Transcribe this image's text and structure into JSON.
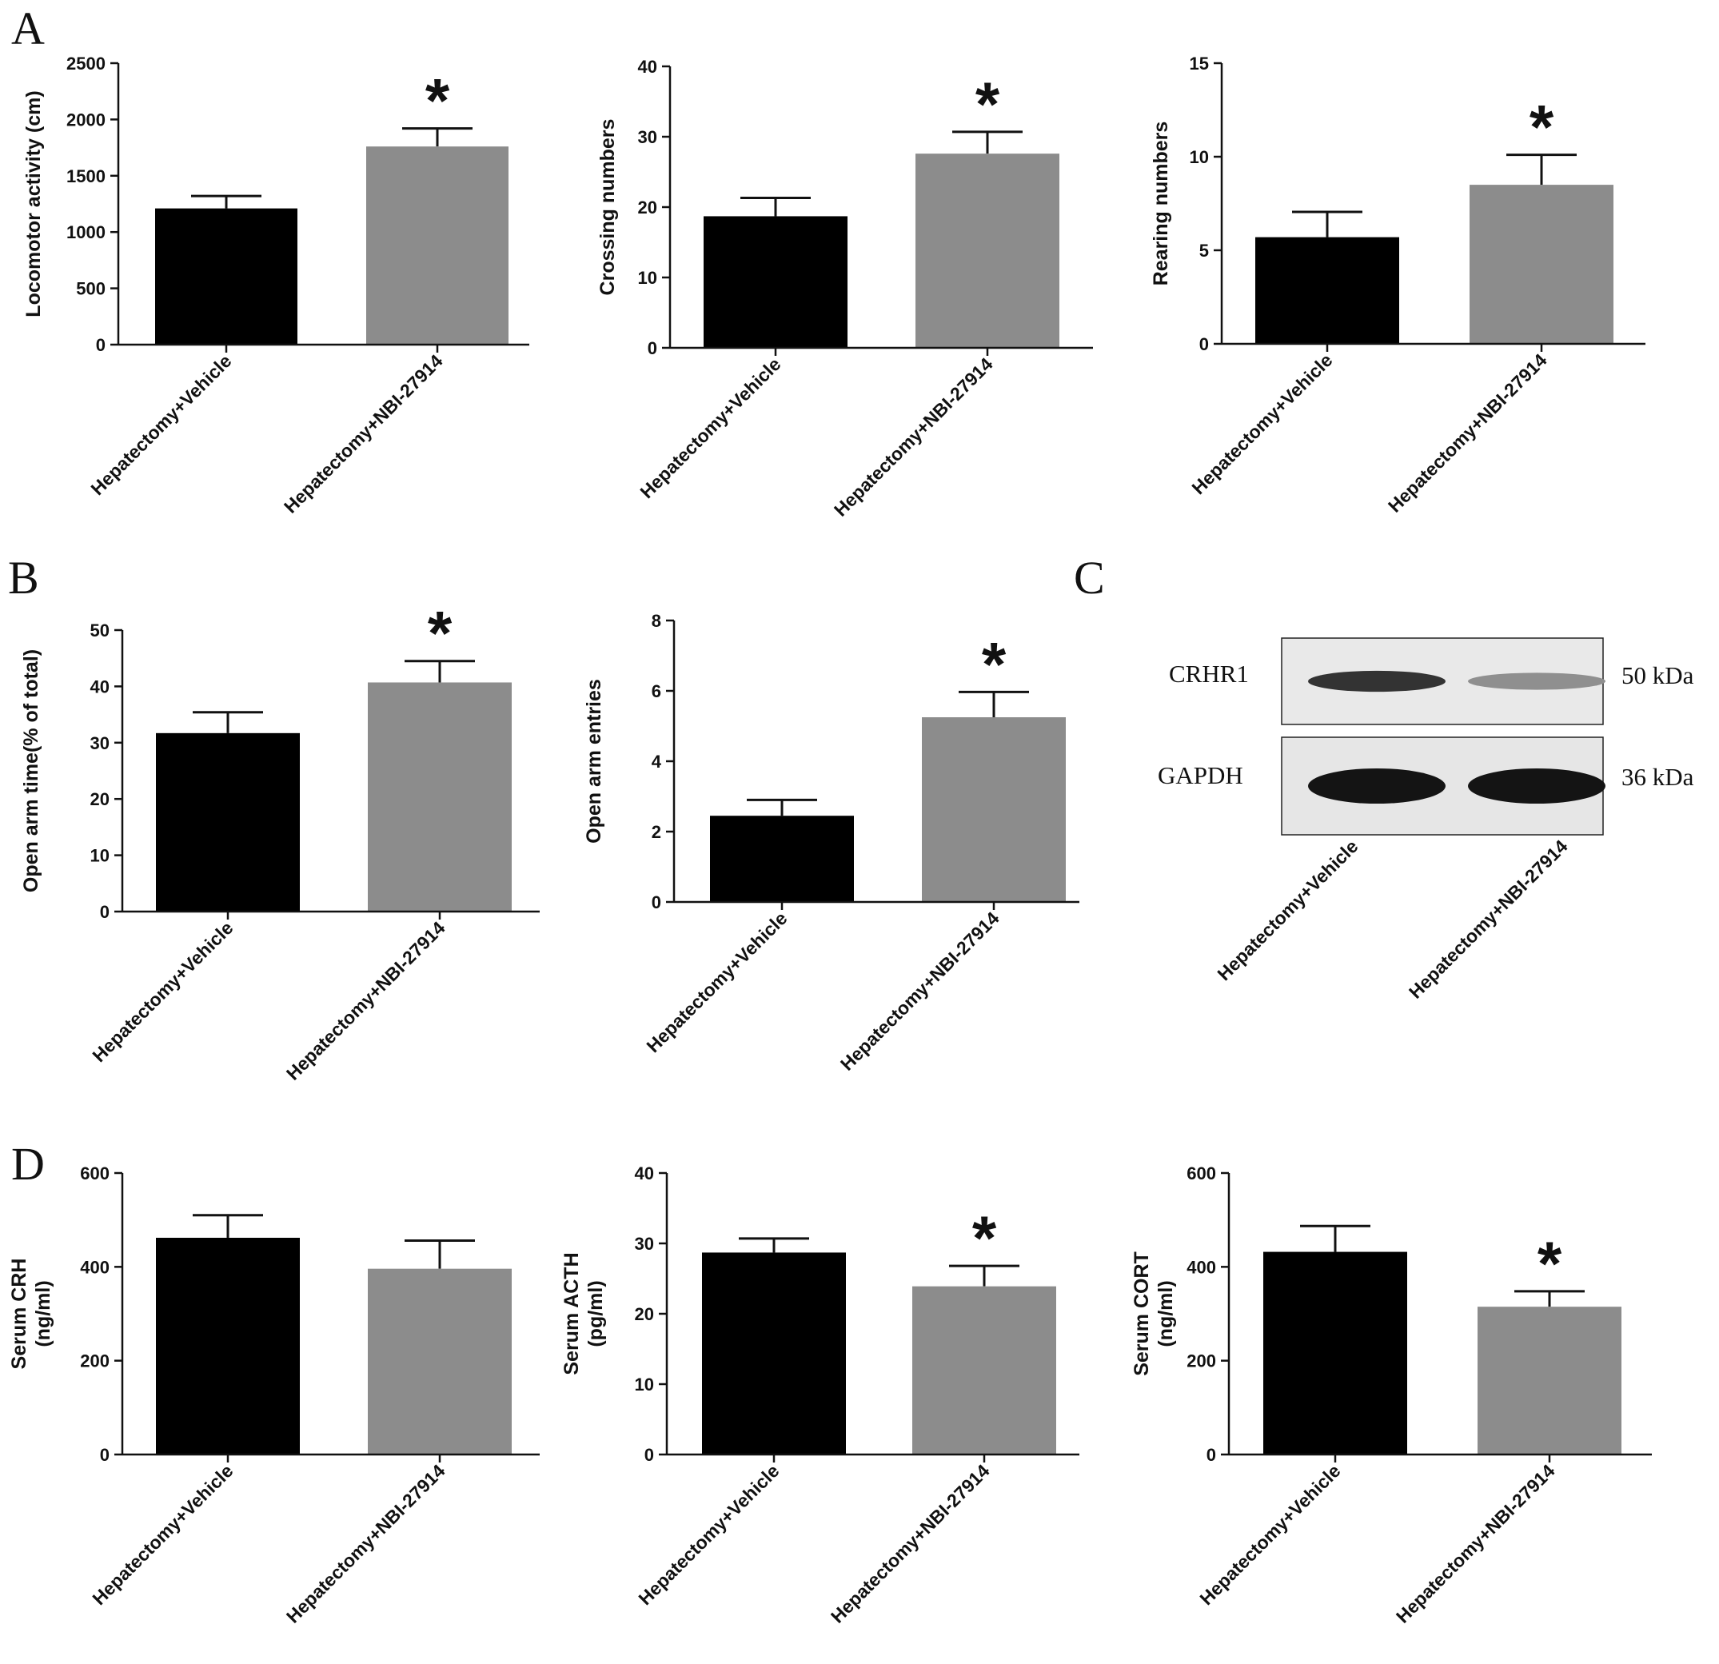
{
  "panel_letters": {
    "A": "A",
    "B": "B",
    "C": "C",
    "D": "D"
  },
  "colors": {
    "vehicle": "#000000",
    "treatment": "#8c8c8c",
    "axis": "#111111"
  },
  "chart_data": [
    {
      "id": "locomotor",
      "panel": "A",
      "type": "bar",
      "categories": [
        "Hepatectomy+Vehicle",
        "Hepatectomy+NBI-27914"
      ],
      "values": [
        1210,
        1760
      ],
      "errors": [
        110,
        160
      ],
      "significant": [
        false,
        true
      ],
      "sig_symbol": "*",
      "ylabel": [
        "Locomotor activity (cm)"
      ],
      "ylim": [
        0,
        2500
      ],
      "yticks": [
        0,
        500,
        1000,
        1500,
        2000,
        2500
      ],
      "grid": false
    },
    {
      "id": "crossing",
      "panel": "A",
      "type": "bar",
      "categories": [
        "Hepatectomy+Vehicle",
        "Hepatectomy+NBI-27914"
      ],
      "values": [
        18.7,
        27.6
      ],
      "errors": [
        2.6,
        3.1
      ],
      "significant": [
        false,
        true
      ],
      "sig_symbol": "*",
      "ylabel": [
        "Crossing numbers"
      ],
      "ylim": [
        0,
        40
      ],
      "yticks": [
        0,
        10,
        20,
        30,
        40
      ],
      "grid": false
    },
    {
      "id": "rearing",
      "panel": "A",
      "type": "bar",
      "categories": [
        "Hepatectomy+Vehicle",
        "Hepatectomy+NBI-27914"
      ],
      "values": [
        5.7,
        8.5
      ],
      "errors": [
        1.35,
        1.6
      ],
      "significant": [
        false,
        true
      ],
      "sig_symbol": "*",
      "ylabel": [
        "Rearing numbers"
      ],
      "ylim": [
        0,
        15
      ],
      "yticks": [
        0,
        5,
        10,
        15
      ],
      "grid": false
    },
    {
      "id": "open_arm_time",
      "panel": "B",
      "type": "bar",
      "categories": [
        "Hepatectomy+Vehicle",
        "Hepatectomy+NBI-27914"
      ],
      "values": [
        31.7,
        40.7
      ],
      "errors": [
        3.7,
        3.8
      ],
      "significant": [
        false,
        true
      ],
      "sig_symbol": "*",
      "ylabel": [
        "Open arm time(% of total)"
      ],
      "ylim": [
        0,
        50
      ],
      "yticks": [
        0,
        10,
        20,
        30,
        40,
        50
      ],
      "grid": false
    },
    {
      "id": "open_arm_entries",
      "panel": "B",
      "type": "bar",
      "categories": [
        "Hepatectomy+Vehicle",
        "Hepatectomy+NBI-27914"
      ],
      "values": [
        2.45,
        5.25
      ],
      "errors": [
        0.45,
        0.72
      ],
      "significant": [
        false,
        true
      ],
      "sig_symbol": "*",
      "ylabel": [
        "Open arm entries"
      ],
      "ylim": [
        0,
        8
      ],
      "yticks": [
        0,
        2,
        4,
        6,
        8
      ],
      "grid": false
    },
    {
      "id": "serum_crh",
      "panel": "D",
      "type": "bar",
      "categories": [
        "Hepatectomy+Vehicle",
        "Hepatectomy+NBI-27914"
      ],
      "values": [
        462,
        396
      ],
      "errors": [
        48,
        60
      ],
      "significant": [
        false,
        false
      ],
      "sig_symbol": "*",
      "ylabel": [
        "Serum CRH",
        "(ng/ml)"
      ],
      "ylim": [
        0,
        600
      ],
      "yticks": [
        0,
        200,
        400,
        600
      ],
      "grid": false
    },
    {
      "id": "serum_acth",
      "panel": "D",
      "type": "bar",
      "categories": [
        "Hepatectomy+Vehicle",
        "Hepatectomy+NBI-27914"
      ],
      "values": [
        28.7,
        23.9
      ],
      "errors": [
        2.0,
        2.9
      ],
      "significant": [
        false,
        true
      ],
      "sig_symbol": "*",
      "ylabel": [
        "Serum ACTH",
        "(pg/ml)"
      ],
      "ylim": [
        0,
        40
      ],
      "yticks": [
        0,
        10,
        20,
        30,
        40
      ],
      "grid": false
    },
    {
      "id": "serum_cort",
      "panel": "D",
      "type": "bar",
      "categories": [
        "Hepatectomy+Vehicle",
        "Hepatectomy+NBI-27914"
      ],
      "values": [
        432,
        315
      ],
      "errors": [
        55,
        33
      ],
      "significant": [
        false,
        true
      ],
      "sig_symbol": "*",
      "ylabel": [
        "Serum CORT",
        "(ng/ml)"
      ],
      "ylim": [
        0,
        600
      ],
      "yticks": [
        0,
        200,
        400,
        600
      ],
      "grid": false
    }
  ],
  "western_blot": {
    "panel": "C",
    "rows": [
      {
        "protein": "CRHR1",
        "mw": "50 kDa",
        "band_intensity": [
          0.85,
          0.4
        ]
      },
      {
        "protein": "GAPDH",
        "mw": "36 kDa",
        "band_intensity": [
          1.0,
          1.0
        ]
      }
    ],
    "lanes": [
      "Hepatectomy+Vehicle",
      "Hepatectomy+NBI-27914"
    ]
  }
}
